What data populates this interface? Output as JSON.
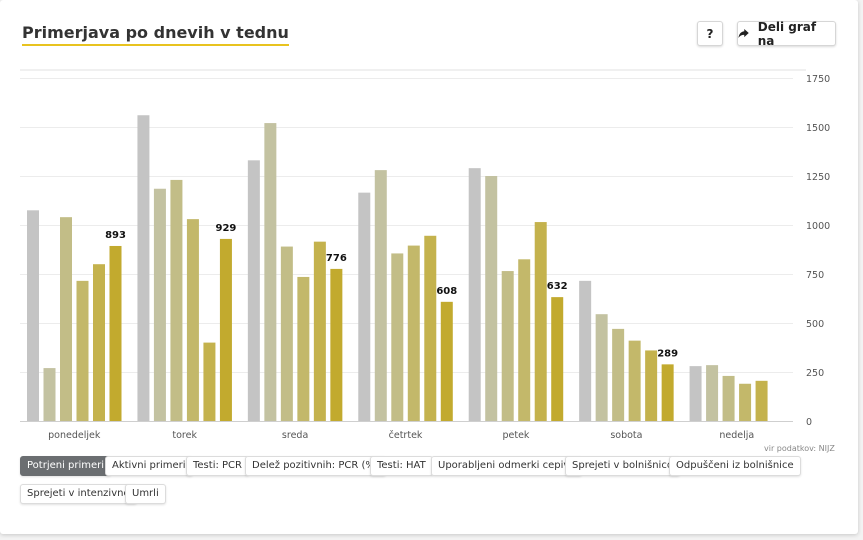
{
  "title": "Primerjava po dnevih v tednu",
  "help_label": "?",
  "share_label": "Deli graf na",
  "share_icon": "share-arrow-icon",
  "source": "vir podatkov: NIJZ",
  "tabs": [
    {
      "label": "Potrjeni primeri",
      "active": true
    },
    {
      "label": "Aktivni primeri",
      "active": false
    },
    {
      "label": "Testi: PCR",
      "active": false
    },
    {
      "label": "Delež pozitivnih: PCR (%)",
      "active": false
    },
    {
      "label": "Testi: HAT",
      "active": false
    },
    {
      "label": "Uporabljeni odmerki cepiva",
      "active": false
    },
    {
      "label": "Sprejeti v bolnišnico",
      "active": false
    },
    {
      "label": "Odpuščeni iz bolnišnice",
      "active": false
    },
    {
      "label": "Sprejeti v intenzivno",
      "active": false
    },
    {
      "label": "Umrli",
      "active": false
    }
  ],
  "chart_data": {
    "type": "bar",
    "categories": [
      "ponedeljek",
      "torek",
      "sreda",
      "četrtek",
      "petek",
      "sobota",
      "nedelja"
    ],
    "series": [
      {
        "values": [
          1075,
          1560,
          1330,
          1165,
          1290,
          715,
          280
        ],
        "color": "#c4c4c4"
      },
      {
        "values": [
          270,
          1185,
          1520,
          1280,
          1250,
          545,
          285
        ],
        "color": "#c3c2a1"
      },
      {
        "values": [
          1040,
          1230,
          890,
          855,
          765,
          470,
          230
        ],
        "color": "#c2bd87"
      },
      {
        "values": [
          715,
          1030,
          735,
          895,
          825,
          410,
          190
        ],
        "color": "#c3b86a"
      },
      {
        "values": [
          800,
          400,
          915,
          945,
          1015,
          360,
          205
        ],
        "color": "#c4b24d"
      },
      {
        "values": [
          893,
          929,
          776,
          608,
          632,
          289,
          null
        ],
        "color": "#c2aa2e"
      }
    ],
    "data_labels": [
      "893",
      "929",
      "776",
      "608",
      "632",
      "289",
      ""
    ],
    "y_ticks": [
      "0",
      "250",
      "500",
      "750",
      "1000",
      "1250",
      "1500",
      "1750"
    ],
    "ylim": [
      0,
      1750
    ],
    "y_axis_side": "right",
    "grid": true
  }
}
